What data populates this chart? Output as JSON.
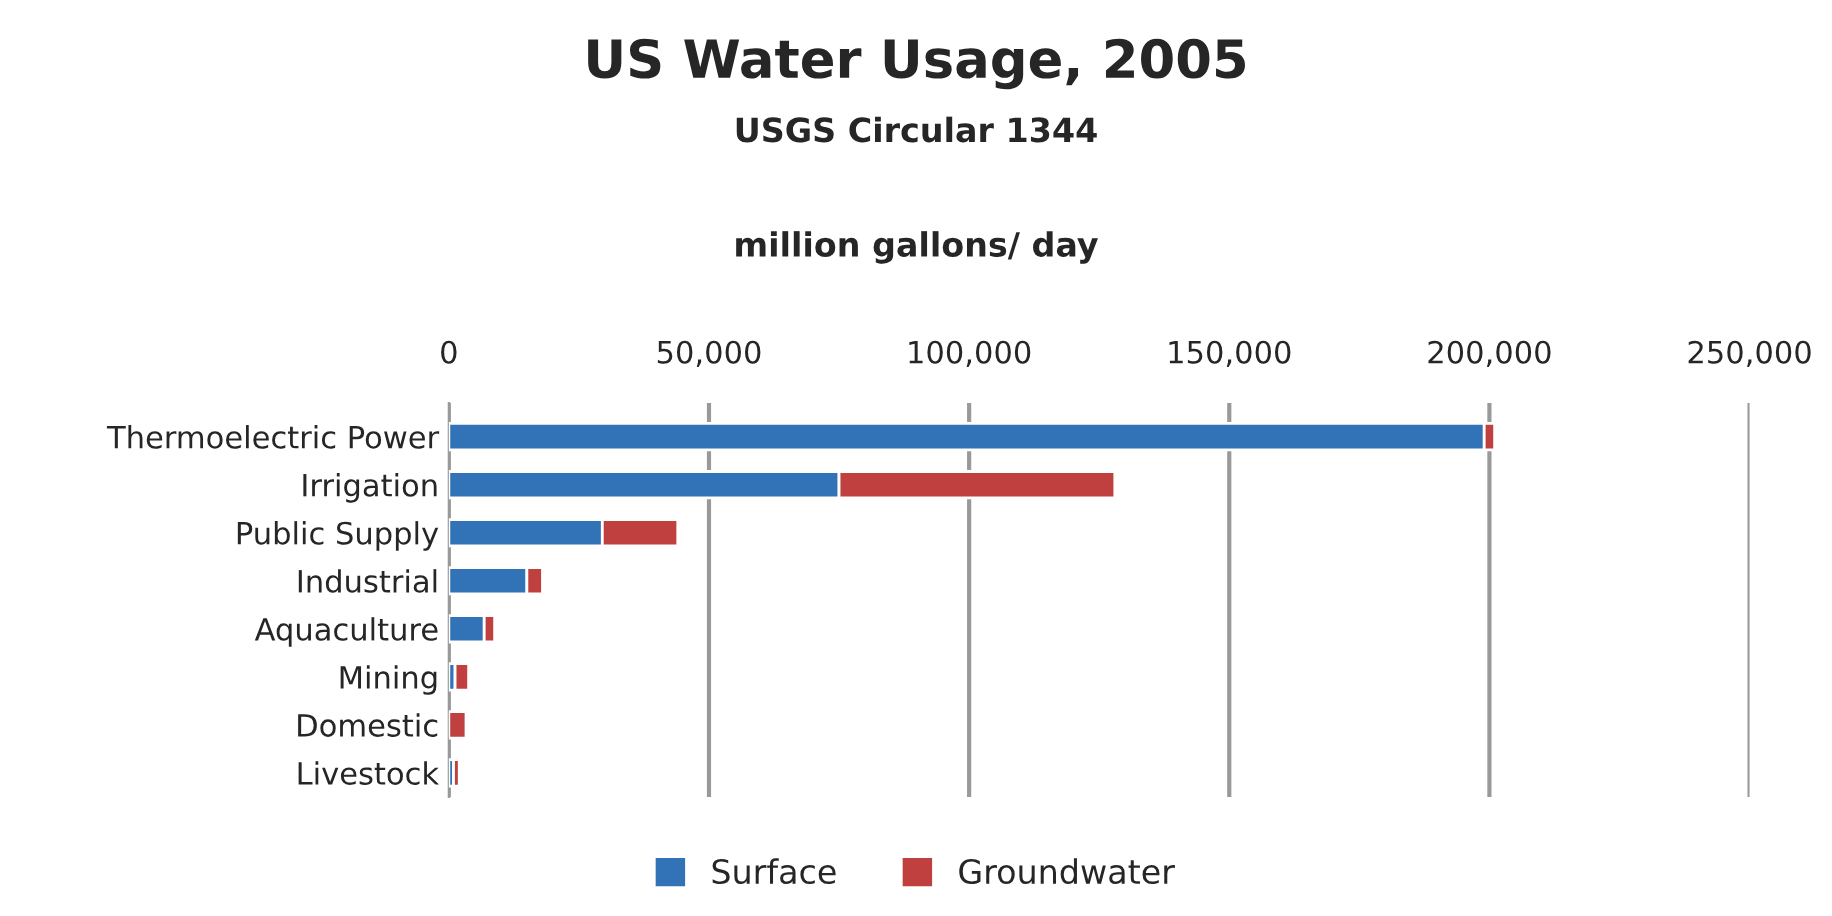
{
  "chart_data": {
    "type": "bar",
    "orientation": "horizontal",
    "stacked": true,
    "title": "US Water Usage, 2005",
    "subtitle": "USGS Circular 1344",
    "xlabel": "million gallons/ day",
    "categories": [
      "Thermoelectric Power",
      "Irrigation",
      "Public Supply",
      "Industrial",
      "Aquaculture",
      "Mining",
      "Domestic",
      "Livestock"
    ],
    "series": [
      {
        "name": "Surface",
        "color": "#3273b8",
        "values": [
          199000,
          75000,
          29500,
          15000,
          6800,
          1200,
          null,
          900
        ]
      },
      {
        "name": "Groundwater",
        "color": "#c0403f",
        "values": [
          2000,
          53000,
          14500,
          3000,
          2000,
          2600,
          3300,
          1100
        ]
      }
    ],
    "xlim": [
      0,
      250000
    ],
    "xticks": [
      {
        "value": 0,
        "label": "0"
      },
      {
        "value": 50000,
        "label": "50,000"
      },
      {
        "value": 100000,
        "label": "100,000"
      },
      {
        "value": 150000,
        "label": "150,000"
      },
      {
        "value": 200000,
        "label": "200,000"
      },
      {
        "value": 250000,
        "label": "250,000"
      }
    ],
    "grid": "x",
    "legend": "bottom"
  }
}
